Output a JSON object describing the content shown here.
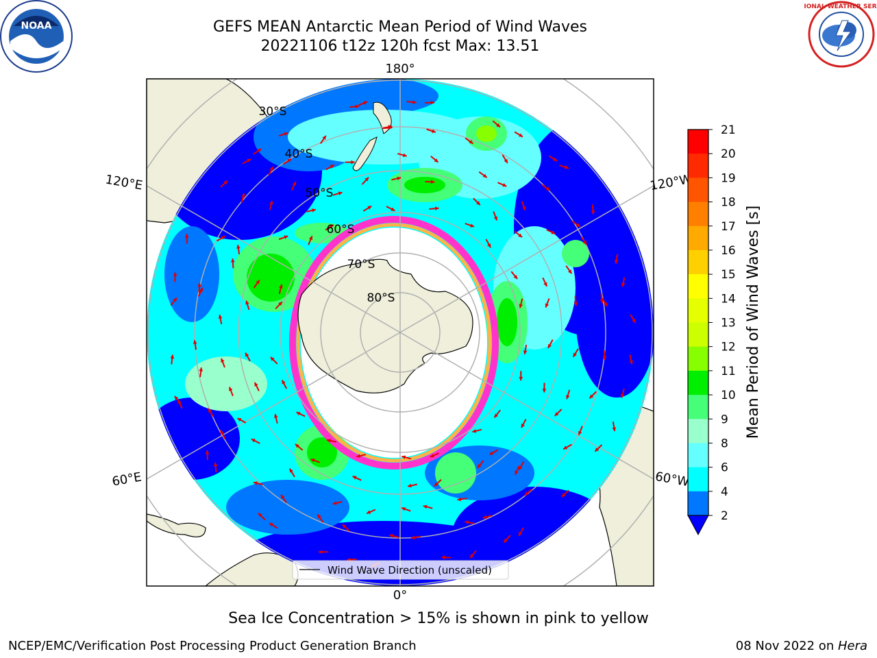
{
  "header": {
    "title_line1": "GEFS MEAN Antarctic Mean Period of Wind Waves",
    "title_line2": "20221106 t12z 120h fcst   Max: 13.51"
  },
  "map": {
    "projection": "south-polar-stereographic",
    "longitude_labels": {
      "top": "180°",
      "bottom": "0°",
      "upper_left": "120°E",
      "upper_right": "120°W",
      "lower_left": "60°E",
      "lower_right": "60°W"
    },
    "latitude_labels": [
      "30°S",
      "40°S",
      "50°S",
      "60°S",
      "70°S",
      "80°S"
    ],
    "legend_label": "Wind Wave Direction (unscaled)",
    "arrow_color": "#e00000",
    "sea_ice_colors": [
      "#ff33cc",
      "#ffb347",
      "#ffff66"
    ],
    "land_color": "#efefdb"
  },
  "colorbar": {
    "label": "Mean Period of Wind Waves [s]",
    "ticks": [
      "21",
      "20",
      "19",
      "18",
      "17",
      "16",
      "15",
      "14",
      "13",
      "12",
      "11",
      "10",
      "9",
      "8",
      "6",
      "4",
      "2"
    ],
    "colors": [
      "#ff0000",
      "#ff2a00",
      "#ff5500",
      "#ff8000",
      "#ffaa00",
      "#ffd000",
      "#ffff00",
      "#e6ff00",
      "#ccff00",
      "#88ff00",
      "#00ee00",
      "#44ff77",
      "#99ffcc",
      "#66ffff",
      "#00ffff",
      "#0077ff",
      "#0000ff"
    ],
    "extend": "min"
  },
  "footer": {
    "caption": "Sea Ice Concentration > 15% is shown in pink to yellow",
    "left": "NCEP/EMC/Verification Post Processing Product Generation Branch",
    "right_date": "08 Nov 2022 on ",
    "right_host": "Hera"
  },
  "logos": {
    "noaa_text": "NOAA",
    "nws_text": "NATIONAL WEATHER SERVICE"
  }
}
